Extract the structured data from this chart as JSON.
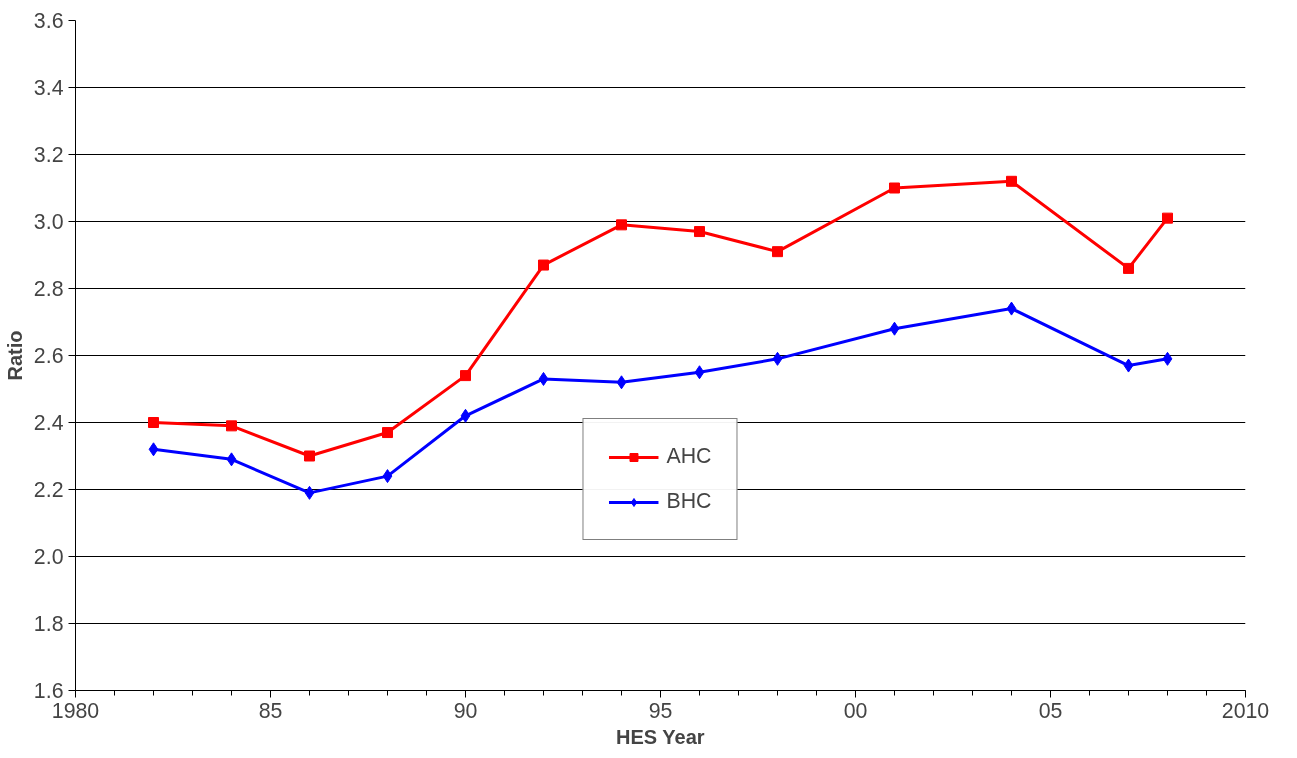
{
  "chart_data": {
    "type": "line",
    "xlabel": "HES Year",
    "ylabel": "Ratio",
    "x": [
      1982,
      1984,
      1986,
      1988,
      1990,
      1992,
      1994,
      1996,
      1998,
      2001,
      2004,
      2007,
      2008
    ],
    "series": [
      {
        "name": "AHC",
        "color": "#ff0000",
        "marker": "square",
        "values": [
          2.4,
          2.39,
          2.3,
          2.37,
          2.54,
          2.87,
          2.99,
          2.97,
          2.91,
          3.1,
          3.12,
          2.86,
          3.01
        ]
      },
      {
        "name": "BHC",
        "color": "#0000ff",
        "marker": "diamond",
        "values": [
          2.32,
          2.29,
          2.19,
          2.24,
          2.42,
          2.53,
          2.52,
          2.55,
          2.59,
          2.68,
          2.74,
          2.57,
          2.59
        ]
      }
    ],
    "xlim": [
      1980,
      2010
    ],
    "xticks": [
      1980,
      {
        "value": 1985,
        "label": "85"
      },
      {
        "value": 1990,
        "label": "90"
      },
      {
        "value": 1995,
        "label": "95"
      },
      {
        "value": 2000,
        "label": "00"
      },
      {
        "value": 2005,
        "label": "05"
      },
      2010
    ],
    "ylim": [
      1.6,
      3.6
    ],
    "yticks": [
      {
        "value": 1.6,
        "label": "1.6"
      },
      {
        "value": 1.8,
        "label": "1.8"
      },
      {
        "value": 2.0,
        "label": "2.0"
      },
      {
        "value": 2.2,
        "label": "2.2"
      },
      {
        "value": 2.4,
        "label": "2.4"
      },
      {
        "value": 2.6,
        "label": "2.6"
      },
      {
        "value": 2.8,
        "label": "2.8"
      },
      {
        "value": 3.0,
        "label": "3.0"
      },
      {
        "value": 3.2,
        "label": "3.2"
      },
      {
        "value": 3.4,
        "label": "3.4"
      },
      {
        "value": 3.6,
        "label": "3.6"
      }
    ],
    "grid": "y",
    "legend": "bottom",
    "line_style": "solid"
  }
}
